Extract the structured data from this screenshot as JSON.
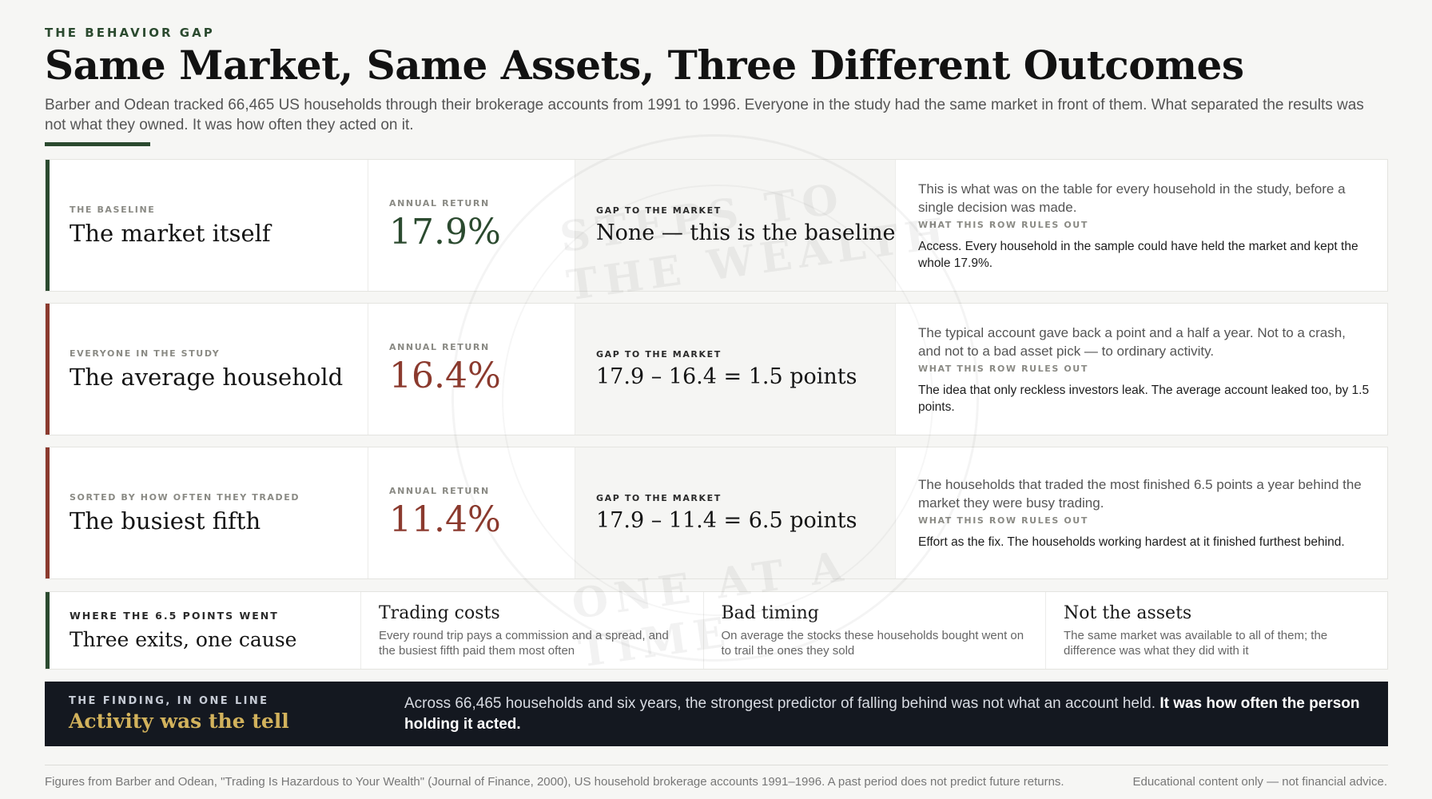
{
  "header": {
    "eyebrow": "THE BEHAVIOR GAP",
    "title": "Same Market, Same Assets, Three Different Outcomes",
    "subtitle": "Barber and Odean tracked 66,465 US households through their brokerage accounts from 1991 to 1996. Everyone in the study had the same market in front of them. What separated the results was not what they owned. It was how often they acted on it."
  },
  "watermark": {
    "top_text": "STEPS TO THE WEALTH",
    "bottom_text": "ONE AT A TIME"
  },
  "colors": {
    "green": "#2b4a2f",
    "red": "#8b3a2e",
    "dark": "#141820",
    "gold": "#d2b25c"
  },
  "rows": [
    {
      "kicker": "THE BASELINE",
      "title": "The market itself",
      "return_label": "ANNUAL RETURN",
      "return_value": "17.9%",
      "gap_label": "GAP TO THE MARKET",
      "gap_value": "None — this is the baseline",
      "description": "This is what was on the table for every household in the study, before a single decision was made.",
      "rules_label": "WHAT THIS ROW RULES OUT",
      "rules_text": "Access. Every household in the sample could have held the market and kept the whole 17.9%.",
      "accent": "#2b4a2f",
      "value_color": "#2b4a2f"
    },
    {
      "kicker": "EVERYONE IN THE STUDY",
      "title": "The average household",
      "return_label": "ANNUAL RETURN",
      "return_value": "16.4%",
      "gap_label": "GAP TO THE MARKET",
      "gap_value": "17.9 – 16.4 = 1.5 points",
      "description": "The typical account gave back a point and a half a year. Not to a crash, and not to a bad asset pick — to ordinary activity.",
      "rules_label": "WHAT THIS ROW RULES OUT",
      "rules_text": "The idea that only reckless investors leak. The average account leaked too, by 1.5 points.",
      "accent": "#8b3a2e",
      "value_color": "#8b3a2e"
    },
    {
      "kicker": "SORTED BY HOW OFTEN THEY TRADED",
      "title": "The busiest fifth",
      "return_label": "ANNUAL RETURN",
      "return_value": "11.4%",
      "gap_label": "GAP TO THE MARKET",
      "gap_value": "17.9 – 11.4 = 6.5 points",
      "description": "The households that traded the most finished 6.5 points a year behind the market they were busy trading.",
      "rules_label": "WHAT THIS ROW RULES OUT",
      "rules_text": "Effort as the fix. The households working hardest at it finished furthest behind.",
      "accent": "#8b3a2e",
      "value_color": "#8b3a2e"
    }
  ],
  "exits": {
    "label": "WHERE THE 6.5 POINTS WENT",
    "title": "Three exits, one cause",
    "items": [
      {
        "title": "Trading costs",
        "text": "Every round trip pays a commission and a spread, and the busiest fifth paid them most often"
      },
      {
        "title": "Bad timing",
        "text": "On average the stocks these households bought went on to trail the ones they sold"
      },
      {
        "title": "Not the assets",
        "text": "The same market was available to all of them; the difference was what they did with it"
      }
    ]
  },
  "finding": {
    "label": "THE FINDING, IN ONE LINE",
    "title": "Activity was the tell",
    "text": "Across 66,465 households and six years, the strongest predictor of falling behind was not what an account held.",
    "text_bold": "It was how often the person holding it acted."
  },
  "footer": {
    "source": "Figures from Barber and Odean, \"Trading Is Hazardous to Your Wealth\" (Journal of Finance, 2000), US household brokerage accounts 1991–1996. A past period does not predict future returns.",
    "disclaimer": "Educational content only — not financial advice."
  }
}
